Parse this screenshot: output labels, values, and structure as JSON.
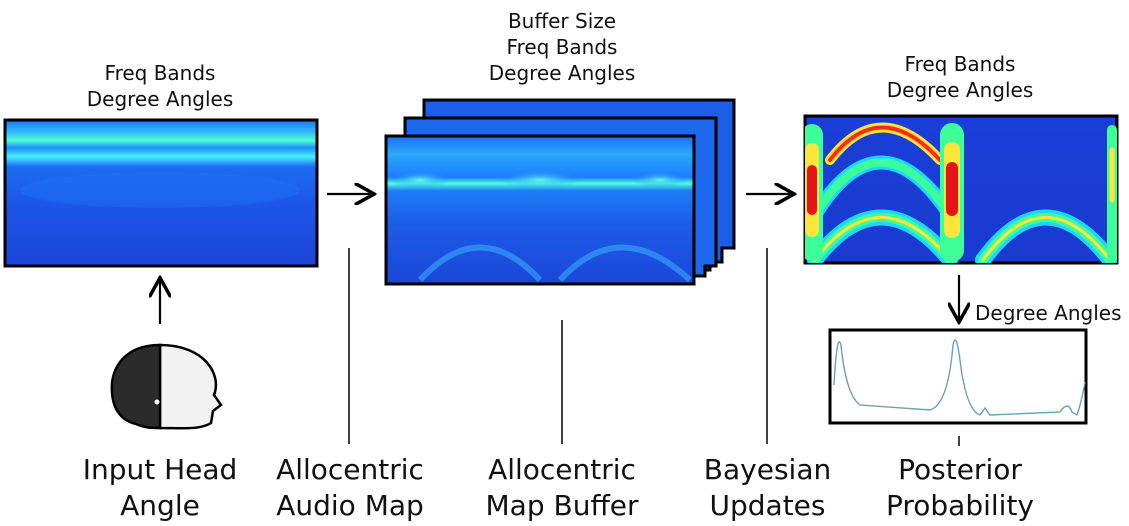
{
  "panels": {
    "audio_map": {
      "label_line1": "Freq Bands",
      "label_line2": "Degree Angles"
    },
    "buffer": {
      "label_line1": "Buffer Size",
      "label_line2": "Freq Bands",
      "label_line3": "Degree Angles"
    },
    "posterior_map": {
      "label_line1": "Freq Bands",
      "label_line2": "Degree Angles"
    },
    "probability": {
      "axis_label": "Degree Angles"
    }
  },
  "stages": [
    {
      "line1": "Input Head",
      "line2": "Angle"
    },
    {
      "line1": "Allocentric",
      "line2": "Audio Map"
    },
    {
      "line1": "Allocentric",
      "line2": "Map Buffer"
    },
    {
      "line1": "Bayesian",
      "line2": "Updates"
    },
    {
      "line1": "Posterior",
      "line2": "Probability"
    }
  ],
  "colors": {
    "heatmap_low": "#1a3fd6",
    "heatmap_mid": "#1e9bff",
    "heatmap_green": "#3dff9a",
    "heatmap_yellow": "#ffe43a",
    "heatmap_red": "#e3141a",
    "curve": "#6f9fb6",
    "frame": "#000000"
  }
}
